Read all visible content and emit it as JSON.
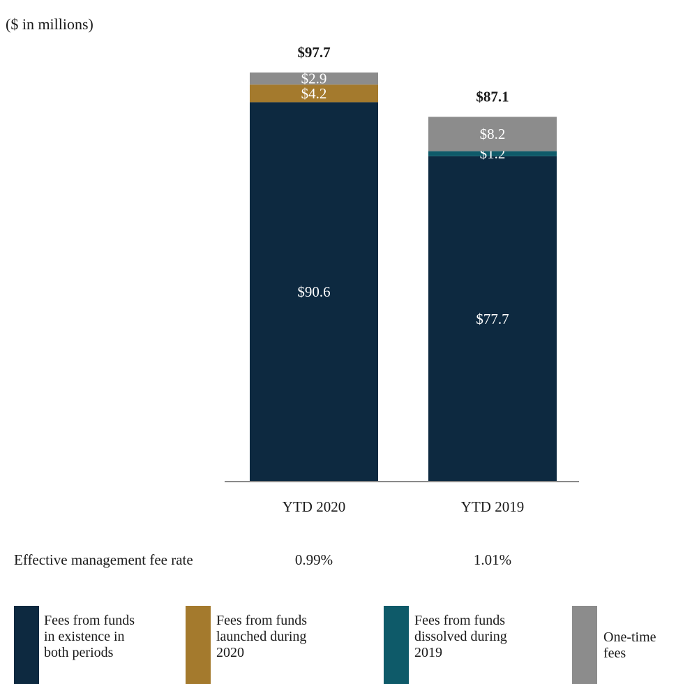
{
  "chart_data": {
    "type": "bar",
    "stacked": true,
    "units_label": "($ in millions)",
    "categories": [
      "YTD 2020",
      "YTD 2019"
    ],
    "totals": [
      97.7,
      87.1
    ],
    "total_labels": [
      "$97.7",
      "$87.1"
    ],
    "series": [
      {
        "name": "Fees from funds in existence in both periods",
        "values": [
          90.6,
          77.7
        ],
        "labels": [
          "$90.6",
          "$77.7"
        ],
        "color": "#0d2940"
      },
      {
        "name": "Fees from funds launched during 2020",
        "values": [
          4.2,
          null
        ],
        "labels": [
          "$4.2",
          ""
        ],
        "color": "#a47a2d"
      },
      {
        "name": "Fees from funds dissolved during 2019",
        "values": [
          null,
          1.2
        ],
        "labels": [
          "",
          "$1.2"
        ],
        "color": "#0e5a69"
      },
      {
        "name": "One-time fees",
        "values": [
          2.9,
          8.2
        ],
        "labels": [
          "$2.9",
          "$8.2"
        ],
        "color": "#8c8c8c"
      }
    ],
    "legend_position": "bottom",
    "grid": false
  },
  "fee_rate": {
    "label": "Effective management fee rate",
    "values": [
      "0.99%",
      "1.01%"
    ]
  },
  "legend": {
    "items": [
      {
        "lines": [
          "Fees from funds",
          "in existence in",
          "both periods"
        ],
        "color": "#0d2940"
      },
      {
        "lines": [
          "Fees from funds",
          "launched during",
          "2020"
        ],
        "color": "#a47a2d"
      },
      {
        "lines": [
          "Fees from funds",
          "dissolved during",
          "2019"
        ],
        "color": "#0e5a69"
      },
      {
        "lines": [
          "One-time",
          "fees"
        ],
        "color": "#8c8c8c"
      }
    ]
  },
  "colors": {
    "axis": "#8a8a8a",
    "segment_label": "#ffffff"
  }
}
